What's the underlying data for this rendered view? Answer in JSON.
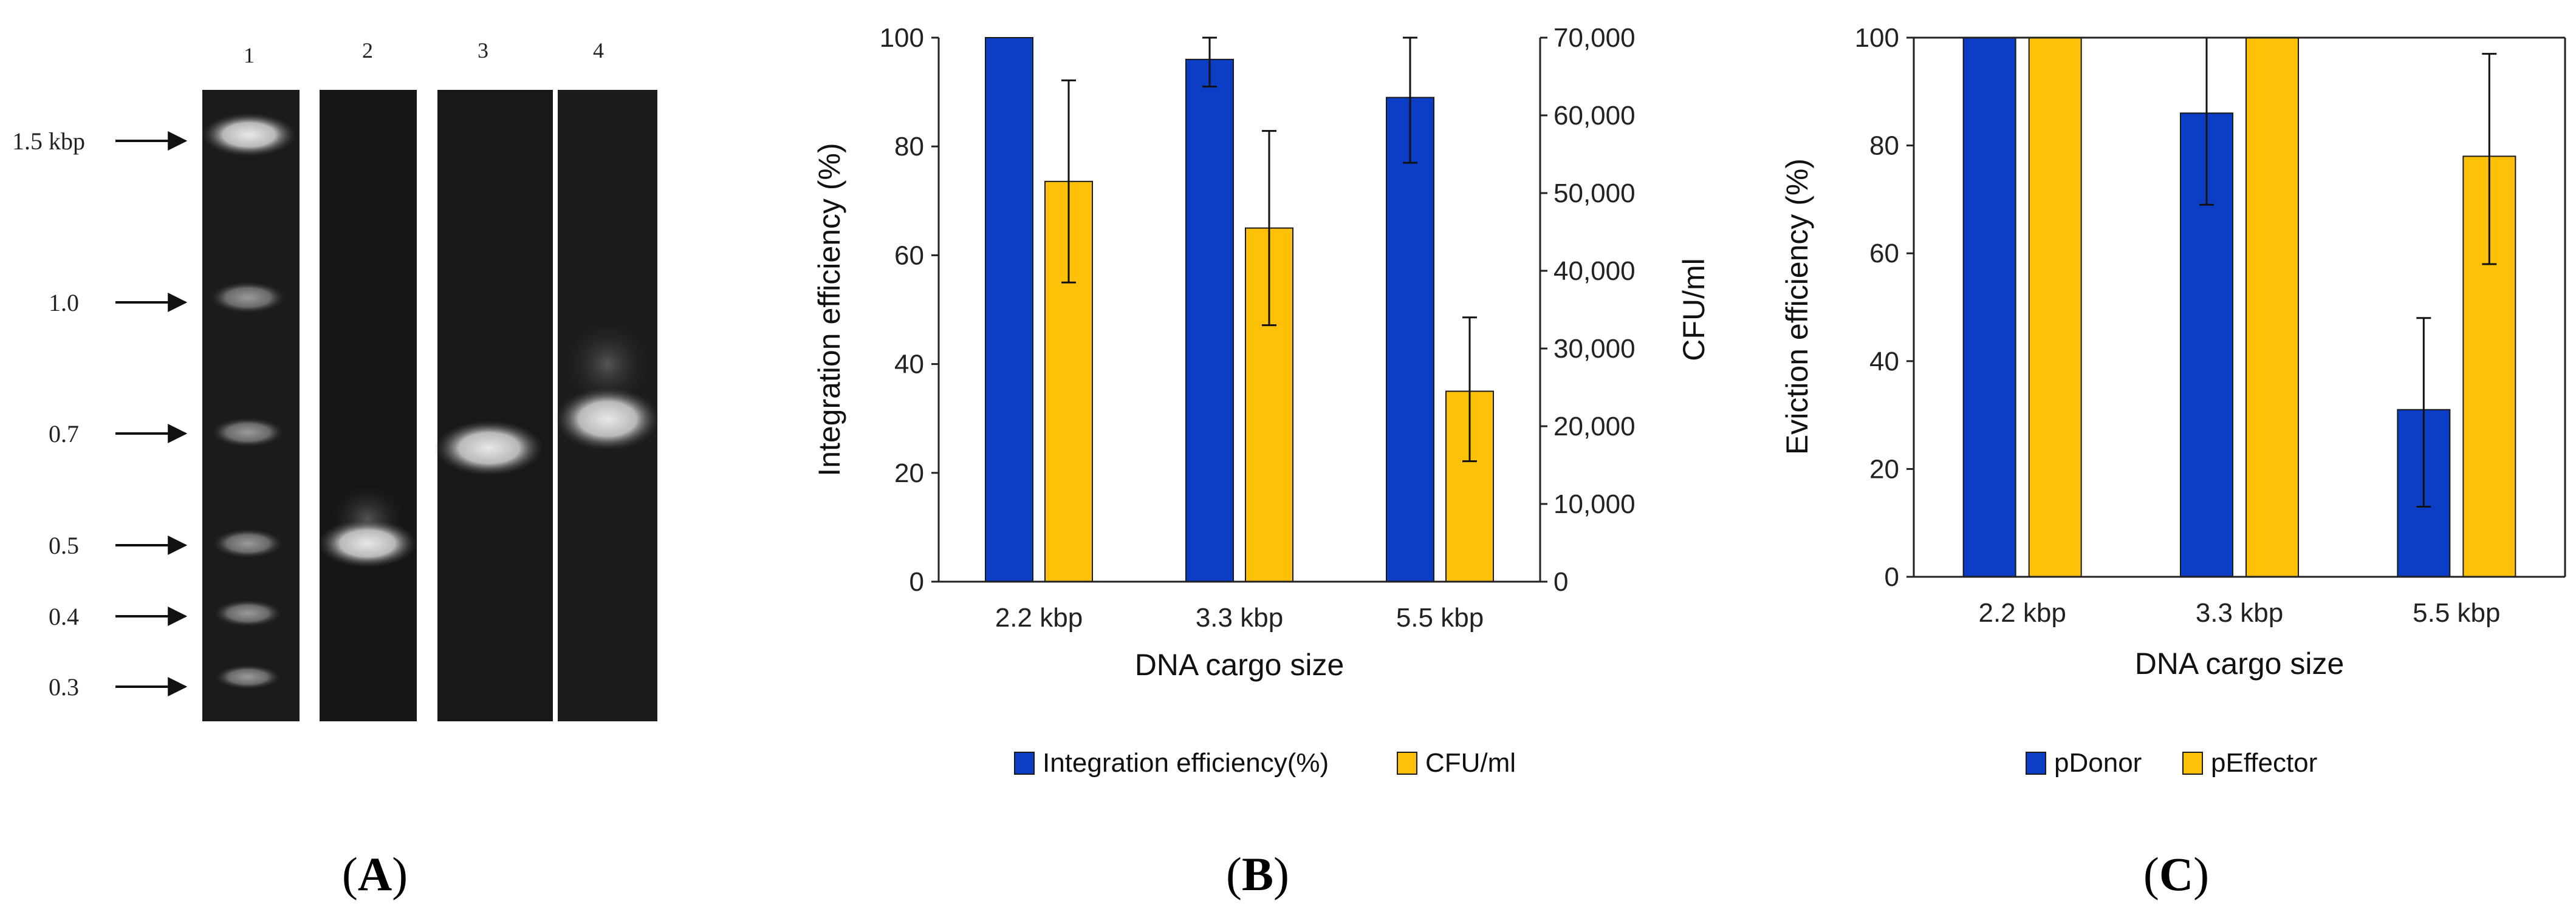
{
  "panels": {
    "a": {
      "label_letter": "A",
      "label_open": "(",
      "label_close": ")"
    },
    "b": {
      "label_letter": "B",
      "label_open": "(",
      "label_close": ")"
    },
    "c": {
      "label_letter": "C",
      "label_open": "(",
      "label_close": ")"
    }
  },
  "gel": {
    "lane_numbers": [
      "1",
      "2",
      "3",
      "4"
    ],
    "size_markers": [
      "1.5 kbp",
      "1.0",
      "0.7",
      "0.5",
      "0.4",
      "0.3"
    ]
  },
  "colors": {
    "blue": "#0B3EC4",
    "yellow": "#FFC107",
    "axis": "#222222",
    "gel_bg": "#1b1b1b"
  },
  "chart_data": [
    {
      "id": "panel-b",
      "type": "bar",
      "xlabel": "DNA cargo size",
      "ylabel": "Integration efficiency (%)",
      "y2label": "CFU/ml",
      "categories": [
        "2.2 kbp",
        "3.3 kbp",
        "5.5 kbp"
      ],
      "ylim": [
        0,
        100
      ],
      "y2lim": [
        0,
        70000
      ],
      "yticks": [
        "0",
        "20",
        "40",
        "60",
        "80",
        "100"
      ],
      "y2ticks": [
        "0",
        "10,000",
        "20,000",
        "30,000",
        "40,000",
        "50,000",
        "60,000",
        "70,000"
      ],
      "series": [
        {
          "name": "Integration efficiency(%)",
          "axis": "left",
          "color": "#0B3EC4",
          "values": [
            100,
            96,
            89
          ],
          "err_low": [
            100,
            91,
            77
          ],
          "err_high": [
            100,
            100,
            100
          ]
        },
        {
          "name": "CFU/ml",
          "axis": "right",
          "color": "#FFC107",
          "values": [
            51500,
            45500,
            24500
          ],
          "err_low": [
            38500,
            33000,
            15500
          ],
          "err_high": [
            64500,
            58000,
            34000
          ]
        }
      ],
      "legend": "bottom"
    },
    {
      "id": "panel-c",
      "type": "bar",
      "xlabel": "DNA cargo size",
      "ylabel": "Eviction efficiency (%)",
      "categories": [
        "2.2 kbp",
        "3.3 kbp",
        "5.5 kbp"
      ],
      "ylim": [
        0,
        100
      ],
      "yticks": [
        "0",
        "20",
        "40",
        "60",
        "80",
        "100"
      ],
      "series": [
        {
          "name": "pDonor",
          "color": "#0B3EC4",
          "values": [
            100,
            86,
            31
          ],
          "err_low": [
            100,
            69,
            13
          ],
          "err_high": [
            100,
            100,
            48
          ]
        },
        {
          "name": "pEffector",
          "color": "#FFC107",
          "values": [
            100,
            100,
            78
          ],
          "err_low": [
            100,
            100,
            58
          ],
          "err_high": [
            100,
            100,
            97
          ]
        }
      ],
      "legend": "bottom"
    }
  ]
}
